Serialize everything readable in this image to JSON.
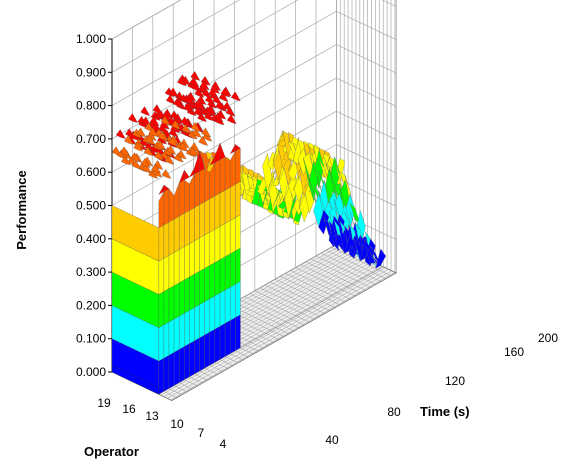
{
  "chart_data": {
    "type": "surface-3d",
    "ylabel": "Performance",
    "xlabel": "Time (s)",
    "zlabel": "Operator",
    "y_ticks": [
      "0.000",
      "0.100",
      "0.200",
      "0.300",
      "0.400",
      "0.500",
      "0.600",
      "0.700",
      "0.800",
      "0.900",
      "1.000"
    ],
    "ylim": [
      0,
      1
    ],
    "x_ticks": [
      "40",
      "80",
      "120",
      "160",
      "200"
    ],
    "xlim": [
      0,
      220
    ],
    "z_ticks": [
      "19",
      "16",
      "13",
      "10",
      "7",
      "4"
    ],
    "zlim": [
      1,
      20
    ],
    "grid": true,
    "band_colors": [
      "#0000ff",
      "#00ffff",
      "#00ff00",
      "#ffff00",
      "#ffcc00",
      "#ff6600",
      "#ff0000"
    ],
    "band_edges": [
      0.0,
      0.1,
      0.2,
      0.3,
      0.4,
      0.5,
      0.6,
      0.7
    ],
    "front_profile": {
      "time": [
        0,
        5,
        10,
        15,
        20,
        25,
        30,
        35,
        40,
        45,
        50,
        55,
        60,
        65,
        70,
        75,
        80
      ],
      "values": [
        0.58,
        0.62,
        0.6,
        0.57,
        0.6,
        0.63,
        0.58,
        0.62,
        0.66,
        0.6,
        0.58,
        0.62,
        0.65,
        0.6,
        0.58,
        0.62,
        0.6
      ]
    },
    "plateau_ridge": {
      "time": [
        0,
        20,
        40,
        60,
        80,
        100,
        120,
        140,
        160,
        180
      ],
      "values": [
        0.66,
        0.7,
        0.68,
        0.74,
        0.72,
        0.68,
        0.71,
        0.66,
        0.6,
        0.55
      ]
    },
    "decay_profile": {
      "time": [
        80,
        100,
        120,
        140,
        160,
        180,
        200,
        220
      ],
      "values": [
        0.5,
        0.45,
        0.36,
        0.3,
        0.42,
        0.35,
        0.12,
        0.0
      ]
    }
  }
}
